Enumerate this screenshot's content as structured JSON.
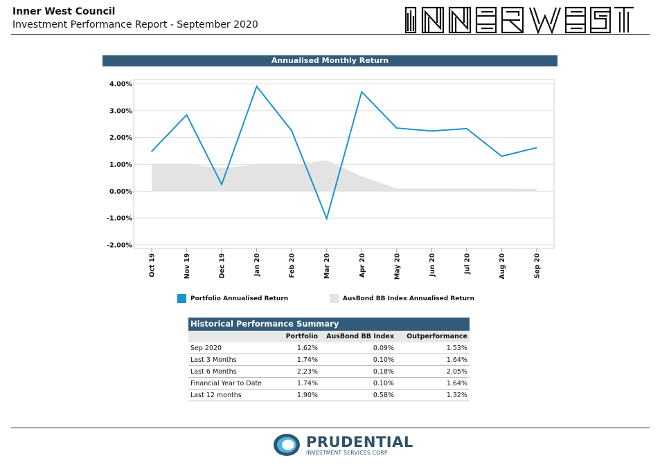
{
  "header": {
    "org": "Inner West Council",
    "subtitle": "Investment Performance Report - September 2020",
    "logo_text": "INNER WEST"
  },
  "chart_section_title": "Annualised Monthly Return",
  "chart_data": {
    "type": "line",
    "categories": [
      "Oct 19",
      "Nov 19",
      "Dec 19",
      "Jan 20",
      "Feb 20",
      "Mar 20",
      "Apr 20",
      "May 20",
      "Jun 20",
      "Jul 20",
      "Aug 20",
      "Sep 20"
    ],
    "series": [
      {
        "name": "Portfolio Annualised Return",
        "type": "line",
        "color": "#1a94d0",
        "values": [
          1.48,
          2.84,
          0.25,
          3.9,
          2.25,
          -1.02,
          3.7,
          2.35,
          2.24,
          2.33,
          1.3,
          1.62
        ]
      },
      {
        "name": "AusBond BB Index Annualised Return",
        "type": "area",
        "color": "#e3e3e3",
        "values": [
          0.98,
          1.0,
          0.87,
          0.98,
          0.98,
          1.15,
          0.55,
          0.1,
          0.1,
          0.1,
          0.1,
          0.09
        ]
      }
    ],
    "yticks": [
      "4.00%",
      "3.00%",
      "2.00%",
      "1.00%",
      "0.00%",
      "-1.00%",
      "-2.00%"
    ],
    "ylim": [
      -2.0,
      4.0
    ],
    "grid": true,
    "legend_position": "bottom"
  },
  "legend": [
    {
      "label": "Portfolio Annualised Return",
      "color": "#1a94d0"
    },
    {
      "label": "AusBond BB Index Annualised Return",
      "color": "#e3e3e3"
    }
  ],
  "summary": {
    "title": "Historical Performance Summary",
    "columns": [
      "",
      "Portfolio",
      "AusBond BB Index",
      "Outperformance"
    ],
    "rows": [
      [
        "Sep 2020",
        "1.62%",
        "0.09%",
        "1.53%"
      ],
      [
        "Last 3 Months",
        "1.74%",
        "0.10%",
        "1.64%"
      ],
      [
        "Last 6 Months",
        "2.23%",
        "0.18%",
        "2.05%"
      ],
      [
        "Financial Year to Date",
        "1.74%",
        "0.10%",
        "1.64%"
      ],
      [
        "Last 12 months",
        "1.90%",
        "0.58%",
        "1.32%"
      ]
    ]
  },
  "footer": {
    "brand": "PRUDENTIAL",
    "brand_sub": "INVESTMENT SERVICES CORP"
  }
}
